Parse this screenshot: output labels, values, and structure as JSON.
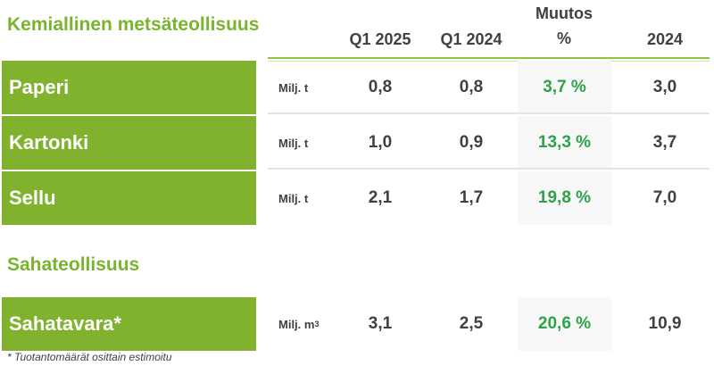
{
  "sections": {
    "chemical": "Kemiallinen metsäteollisuus",
    "sawmill": "Sahateollisuus"
  },
  "headers": {
    "q1_2025": "Q1 2025",
    "q1_2024": "Q1 2024",
    "change_line1": "Muutos",
    "change_line2": "%",
    "year_2024": "2024"
  },
  "rows": [
    {
      "label": "Paperi",
      "unit": "Milj. t",
      "q1_2025": "0,8",
      "q1_2024": "0,8",
      "change": "3,7 %",
      "year_2024": "3,0"
    },
    {
      "label": "Kartonki",
      "unit": "Milj. t",
      "q1_2025": "1,0",
      "q1_2024": "0,9",
      "change": "13,3 %",
      "year_2024": "3,7"
    },
    {
      "label": "Sellu",
      "unit": "Milj. t",
      "q1_2025": "2,1",
      "q1_2024": "1,7",
      "change": "19,8 %",
      "year_2024": "7,0"
    },
    {
      "label": "Sahatavara*",
      "unit": "Milj. m",
      "unit_sup": "3",
      "q1_2025": "3,1",
      "q1_2024": "2,5",
      "change": "20,6 %",
      "year_2024": "10,9"
    }
  ],
  "footnote": "* Tuotantomäärät osittain estimoitu",
  "colors": {
    "accent": "#80b22e",
    "change": "#2ea24a",
    "text": "#404040"
  }
}
